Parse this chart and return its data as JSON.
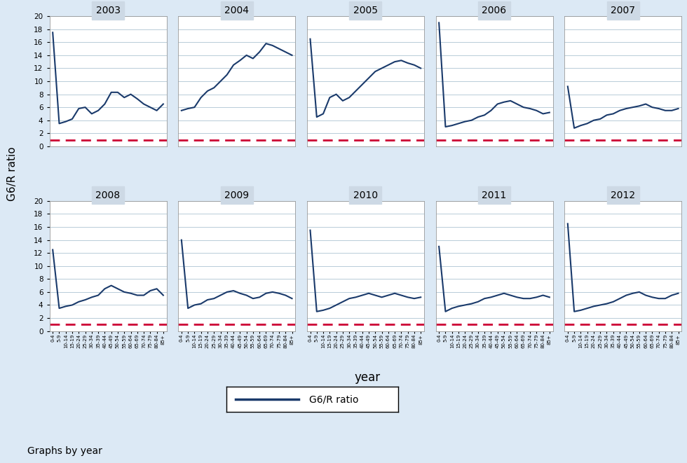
{
  "years": [
    2003,
    2004,
    2005,
    2006,
    2007,
    2008,
    2009,
    2010,
    2011,
    2012
  ],
  "age_groups": [
    "0-4",
    "5-9",
    "10-14",
    "15-19",
    "20-24",
    "25-29",
    "30-34",
    "35-39",
    "40-44",
    "45-49",
    "50-54",
    "55-59",
    "60-64",
    "65-69",
    "70-74",
    "75-79",
    "80-84",
    "85+"
  ],
  "data": {
    "2003": [
      17.5,
      3.5,
      3.8,
      4.2,
      5.8,
      6.0,
      5.0,
      5.5,
      6.5,
      8.3,
      8.3,
      7.5,
      8.0,
      7.3,
      6.5,
      6.0,
      5.5,
      6.5
    ],
    "2004": [
      5.5,
      5.8,
      6.0,
      7.5,
      8.5,
      9.0,
      10.0,
      11.0,
      12.5,
      13.2,
      14.0,
      13.5,
      14.5,
      15.8,
      15.5,
      15.0,
      14.5,
      14.0
    ],
    "2005": [
      16.5,
      4.5,
      5.0,
      7.5,
      8.0,
      7.0,
      7.5,
      8.5,
      9.5,
      10.5,
      11.5,
      12.0,
      12.5,
      13.0,
      13.2,
      12.8,
      12.5,
      12.0
    ],
    "2006": [
      19.0,
      3.0,
      3.2,
      3.5,
      3.8,
      4.0,
      4.5,
      4.8,
      5.5,
      6.5,
      6.8,
      7.0,
      6.5,
      6.0,
      5.8,
      5.5,
      5.0,
      5.2
    ],
    "2007": [
      9.2,
      2.8,
      3.2,
      3.5,
      4.0,
      4.2,
      4.8,
      5.0,
      5.5,
      5.8,
      6.0,
      6.2,
      6.5,
      6.0,
      5.8,
      5.5,
      5.5,
      5.8
    ],
    "2008": [
      12.5,
      3.5,
      3.8,
      4.0,
      4.5,
      4.8,
      5.2,
      5.5,
      6.5,
      7.0,
      6.5,
      6.0,
      5.8,
      5.5,
      5.5,
      6.2,
      6.5,
      5.5
    ],
    "2009": [
      14.0,
      3.5,
      4.0,
      4.2,
      4.8,
      5.0,
      5.5,
      6.0,
      6.2,
      5.8,
      5.5,
      5.0,
      5.2,
      5.8,
      6.0,
      5.8,
      5.5,
      5.0
    ],
    "2010": [
      15.5,
      3.0,
      3.2,
      3.5,
      4.0,
      4.5,
      5.0,
      5.2,
      5.5,
      5.8,
      5.5,
      5.2,
      5.5,
      5.8,
      5.5,
      5.2,
      5.0,
      5.2
    ],
    "2011": [
      13.0,
      3.0,
      3.5,
      3.8,
      4.0,
      4.2,
      4.5,
      5.0,
      5.2,
      5.5,
      5.8,
      5.5,
      5.2,
      5.0,
      5.0,
      5.2,
      5.5,
      5.2
    ],
    "2012": [
      16.5,
      3.0,
      3.2,
      3.5,
      3.8,
      4.0,
      4.2,
      4.5,
      5.0,
      5.5,
      5.8,
      6.0,
      5.5,
      5.2,
      5.0,
      5.0,
      5.5,
      5.8
    ]
  },
  "line_color": "#1a3a6b",
  "dashed_line_color": "#cc0033",
  "dashed_line_y": 1,
  "background_color": "#dce9f5",
  "title_bg_color": "#cdd9e5",
  "plot_area_background": "#ffffff",
  "grid_color": "#b8ccd8",
  "ylabel": "G6/R ratio",
  "xlabel": "year",
  "legend_label": "G6/R ratio",
  "footer_text": "Graphs by year",
  "ylim": [
    0,
    20
  ],
  "yticks": [
    0,
    2,
    4,
    6,
    8,
    10,
    12,
    14,
    16,
    18,
    20
  ]
}
